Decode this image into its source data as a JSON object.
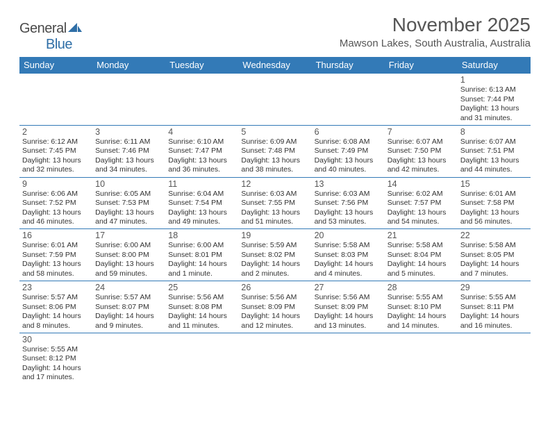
{
  "brand": {
    "name_part1": "General",
    "name_part2": "Blue"
  },
  "title": "November 2025",
  "location": "Mawson Lakes, South Australia, Australia",
  "colors": {
    "header_bg": "#337ab7",
    "header_text": "#ffffff",
    "row_border": "#337ab7",
    "body_text": "#333333",
    "title_text": "#555555"
  },
  "typography": {
    "title_fontsize": 28,
    "location_fontsize": 15,
    "dayheader_fontsize": 13,
    "cell_fontsize": 10.5,
    "daynum_fontsize": 12.5
  },
  "day_headers": [
    "Sunday",
    "Monday",
    "Tuesday",
    "Wednesday",
    "Thursday",
    "Friday",
    "Saturday"
  ],
  "weeks": [
    [
      null,
      null,
      null,
      null,
      null,
      null,
      {
        "n": "1",
        "sunrise": "Sunrise: 6:13 AM",
        "sunset": "Sunset: 7:44 PM",
        "daylight": "Daylight: 13 hours and 31 minutes."
      }
    ],
    [
      {
        "n": "2",
        "sunrise": "Sunrise: 6:12 AM",
        "sunset": "Sunset: 7:45 PM",
        "daylight": "Daylight: 13 hours and 32 minutes."
      },
      {
        "n": "3",
        "sunrise": "Sunrise: 6:11 AM",
        "sunset": "Sunset: 7:46 PM",
        "daylight": "Daylight: 13 hours and 34 minutes."
      },
      {
        "n": "4",
        "sunrise": "Sunrise: 6:10 AM",
        "sunset": "Sunset: 7:47 PM",
        "daylight": "Daylight: 13 hours and 36 minutes."
      },
      {
        "n": "5",
        "sunrise": "Sunrise: 6:09 AM",
        "sunset": "Sunset: 7:48 PM",
        "daylight": "Daylight: 13 hours and 38 minutes."
      },
      {
        "n": "6",
        "sunrise": "Sunrise: 6:08 AM",
        "sunset": "Sunset: 7:49 PM",
        "daylight": "Daylight: 13 hours and 40 minutes."
      },
      {
        "n": "7",
        "sunrise": "Sunrise: 6:07 AM",
        "sunset": "Sunset: 7:50 PM",
        "daylight": "Daylight: 13 hours and 42 minutes."
      },
      {
        "n": "8",
        "sunrise": "Sunrise: 6:07 AM",
        "sunset": "Sunset: 7:51 PM",
        "daylight": "Daylight: 13 hours and 44 minutes."
      }
    ],
    [
      {
        "n": "9",
        "sunrise": "Sunrise: 6:06 AM",
        "sunset": "Sunset: 7:52 PM",
        "daylight": "Daylight: 13 hours and 46 minutes."
      },
      {
        "n": "10",
        "sunrise": "Sunrise: 6:05 AM",
        "sunset": "Sunset: 7:53 PM",
        "daylight": "Daylight: 13 hours and 47 minutes."
      },
      {
        "n": "11",
        "sunrise": "Sunrise: 6:04 AM",
        "sunset": "Sunset: 7:54 PM",
        "daylight": "Daylight: 13 hours and 49 minutes."
      },
      {
        "n": "12",
        "sunrise": "Sunrise: 6:03 AM",
        "sunset": "Sunset: 7:55 PM",
        "daylight": "Daylight: 13 hours and 51 minutes."
      },
      {
        "n": "13",
        "sunrise": "Sunrise: 6:03 AM",
        "sunset": "Sunset: 7:56 PM",
        "daylight": "Daylight: 13 hours and 53 minutes."
      },
      {
        "n": "14",
        "sunrise": "Sunrise: 6:02 AM",
        "sunset": "Sunset: 7:57 PM",
        "daylight": "Daylight: 13 hours and 54 minutes."
      },
      {
        "n": "15",
        "sunrise": "Sunrise: 6:01 AM",
        "sunset": "Sunset: 7:58 PM",
        "daylight": "Daylight: 13 hours and 56 minutes."
      }
    ],
    [
      {
        "n": "16",
        "sunrise": "Sunrise: 6:01 AM",
        "sunset": "Sunset: 7:59 PM",
        "daylight": "Daylight: 13 hours and 58 minutes."
      },
      {
        "n": "17",
        "sunrise": "Sunrise: 6:00 AM",
        "sunset": "Sunset: 8:00 PM",
        "daylight": "Daylight: 13 hours and 59 minutes."
      },
      {
        "n": "18",
        "sunrise": "Sunrise: 6:00 AM",
        "sunset": "Sunset: 8:01 PM",
        "daylight": "Daylight: 14 hours and 1 minute."
      },
      {
        "n": "19",
        "sunrise": "Sunrise: 5:59 AM",
        "sunset": "Sunset: 8:02 PM",
        "daylight": "Daylight: 14 hours and 2 minutes."
      },
      {
        "n": "20",
        "sunrise": "Sunrise: 5:58 AM",
        "sunset": "Sunset: 8:03 PM",
        "daylight": "Daylight: 14 hours and 4 minutes."
      },
      {
        "n": "21",
        "sunrise": "Sunrise: 5:58 AM",
        "sunset": "Sunset: 8:04 PM",
        "daylight": "Daylight: 14 hours and 5 minutes."
      },
      {
        "n": "22",
        "sunrise": "Sunrise: 5:58 AM",
        "sunset": "Sunset: 8:05 PM",
        "daylight": "Daylight: 14 hours and 7 minutes."
      }
    ],
    [
      {
        "n": "23",
        "sunrise": "Sunrise: 5:57 AM",
        "sunset": "Sunset: 8:06 PM",
        "daylight": "Daylight: 14 hours and 8 minutes."
      },
      {
        "n": "24",
        "sunrise": "Sunrise: 5:57 AM",
        "sunset": "Sunset: 8:07 PM",
        "daylight": "Daylight: 14 hours and 9 minutes."
      },
      {
        "n": "25",
        "sunrise": "Sunrise: 5:56 AM",
        "sunset": "Sunset: 8:08 PM",
        "daylight": "Daylight: 14 hours and 11 minutes."
      },
      {
        "n": "26",
        "sunrise": "Sunrise: 5:56 AM",
        "sunset": "Sunset: 8:09 PM",
        "daylight": "Daylight: 14 hours and 12 minutes."
      },
      {
        "n": "27",
        "sunrise": "Sunrise: 5:56 AM",
        "sunset": "Sunset: 8:09 PM",
        "daylight": "Daylight: 14 hours and 13 minutes."
      },
      {
        "n": "28",
        "sunrise": "Sunrise: 5:55 AM",
        "sunset": "Sunset: 8:10 PM",
        "daylight": "Daylight: 14 hours and 14 minutes."
      },
      {
        "n": "29",
        "sunrise": "Sunrise: 5:55 AM",
        "sunset": "Sunset: 8:11 PM",
        "daylight": "Daylight: 14 hours and 16 minutes."
      }
    ],
    [
      {
        "n": "30",
        "sunrise": "Sunrise: 5:55 AM",
        "sunset": "Sunset: 8:12 PM",
        "daylight": "Daylight: 14 hours and 17 minutes."
      },
      null,
      null,
      null,
      null,
      null,
      null
    ]
  ]
}
